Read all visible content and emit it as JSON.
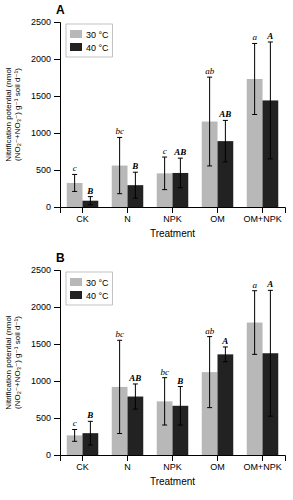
{
  "chart_data": [
    {
      "type": "bar",
      "title": "A",
      "categories": [
        "CK",
        "N",
        "NPK",
        "OM",
        "OM+NPK"
      ],
      "series": [
        {
          "name": "30 °C",
          "color": "#b8b8b8",
          "values": [
            325,
            560,
            455,
            1155,
            1730
          ],
          "errors": [
            115,
            380,
            220,
            600,
            480
          ],
          "annotations": [
            "c",
            "bc",
            "c",
            "ab",
            "a"
          ]
        },
        {
          "name": "40 °C",
          "color": "#222222",
          "values": [
            85,
            295,
            460,
            890,
            1440
          ],
          "errors": [
            55,
            175,
            200,
            280,
            790
          ],
          "annotations": [
            "B",
            "B",
            "AB",
            "AB",
            "A"
          ]
        }
      ],
      "x_label": "Treatment",
      "y_label": "Nitrification potential (nmol (NO₂⁻+NO₃⁻) g⁻¹ soil d⁻¹)",
      "ylim": [
        0,
        2500
      ],
      "yticks": [
        0,
        500,
        1000,
        1500,
        2000,
        2500
      ],
      "legend": "upper left",
      "grid": false
    },
    {
      "type": "bar",
      "title": "B",
      "categories": [
        "CK",
        "N",
        "NPK",
        "OM",
        "OM+NPK"
      ],
      "series": [
        {
          "name": "30 °C",
          "color": "#b8b8b8",
          "values": [
            265,
            920,
            725,
            1120,
            1790
          ],
          "errors": [
            80,
            630,
            320,
            480,
            430
          ],
          "annotations": [
            "c",
            "bc",
            "bc",
            "ab",
            "a"
          ]
        },
        {
          "name": "40 °C",
          "color": "#222222",
          "values": [
            295,
            790,
            665,
            1360,
            1375
          ],
          "errors": [
            160,
            170,
            260,
            100,
            850
          ],
          "annotations": [
            "B",
            "AB",
            "B",
            "A",
            "A"
          ]
        }
      ],
      "x_label": "Treatment",
      "y_label": "Nitrification potential (nmol (NO₂⁻+NO₃⁻) g⁻¹ soil d⁻¹)",
      "ylim": [
        0,
        2500
      ],
      "yticks": [
        0,
        500,
        1000,
        1500,
        2000,
        2500
      ],
      "legend": "upper left",
      "grid": false
    }
  ]
}
